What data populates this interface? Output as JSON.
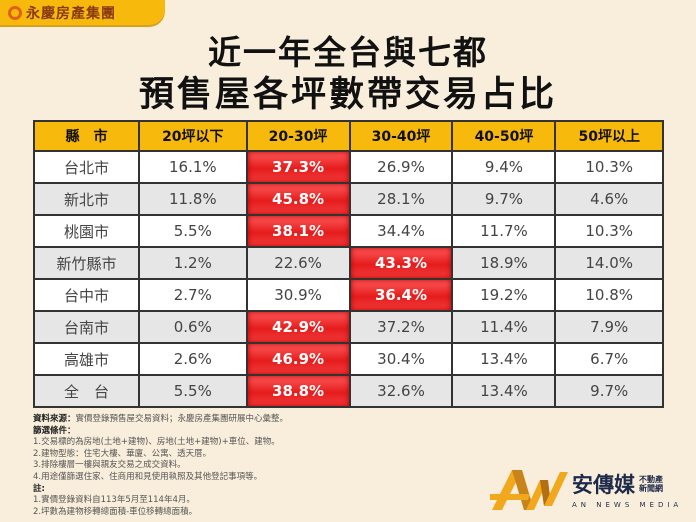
{
  "brand": {
    "name": "永慶房產集團"
  },
  "title": {
    "line1": "近一年全台與七都",
    "line2": "預售屋各坪數帶交易占比"
  },
  "table": {
    "headers": [
      "縣　市",
      "20坪以下",
      "20-30坪",
      "30-40坪",
      "40-50坪",
      "50坪以上"
    ],
    "rows": [
      {
        "city": "台北市",
        "values": [
          "16.1%",
          "37.3%",
          "26.9%",
          "9.4%",
          "10.3%"
        ],
        "highlight": 1
      },
      {
        "city": "新北市",
        "values": [
          "11.8%",
          "45.8%",
          "28.1%",
          "9.7%",
          "4.6%"
        ],
        "highlight": 1
      },
      {
        "city": "桃園市",
        "values": [
          "5.5%",
          "38.1%",
          "34.4%",
          "11.7%",
          "10.3%"
        ],
        "highlight": 1
      },
      {
        "city": "新竹縣市",
        "values": [
          "1.2%",
          "22.6%",
          "43.3%",
          "18.9%",
          "14.0%"
        ],
        "highlight": 2
      },
      {
        "city": "台中市",
        "values": [
          "2.7%",
          "30.9%",
          "36.4%",
          "19.2%",
          "10.8%"
        ],
        "highlight": 2
      },
      {
        "city": "台南市",
        "values": [
          "0.6%",
          "42.9%",
          "37.2%",
          "11.4%",
          "7.9%"
        ],
        "highlight": 1
      },
      {
        "city": "高雄市",
        "values": [
          "2.6%",
          "46.9%",
          "30.4%",
          "13.4%",
          "6.7%"
        ],
        "highlight": 1
      },
      {
        "city": "全　台",
        "values": [
          "5.5%",
          "38.8%",
          "32.6%",
          "13.4%",
          "9.7%"
        ],
        "highlight": 1
      }
    ],
    "highlight_color": "#e82a2a",
    "header_color": "#f6b90c"
  },
  "notes": {
    "source_label": "資料來源：",
    "source_text": "實價登錄預售屋交易資料；永慶房產集團研展中心彙整。",
    "filter_label": "篩選條件：",
    "filters": [
      "1.交易標的為房地(土地+建物)、房地(土地+建物)+車位、建物。",
      "2.建物型態：住宅大樓、華廈、公寓、透天厝。",
      "3.排除樓層一樓與親友交易之成交資料。",
      "4.用途僅篩選住家、住商用和見使用執照及其他登記事項等。"
    ],
    "remark_label": "註:",
    "remarks": [
      "1.實價登錄資料自113年5月至114年4月。",
      "2.坪數為建物移轉總面積-車位移轉總面積。"
    ]
  },
  "media_logo": {
    "name": "安傳媒",
    "sub1": "不動產",
    "sub2": "新聞網",
    "english": "AN NEWS MEDIA"
  }
}
